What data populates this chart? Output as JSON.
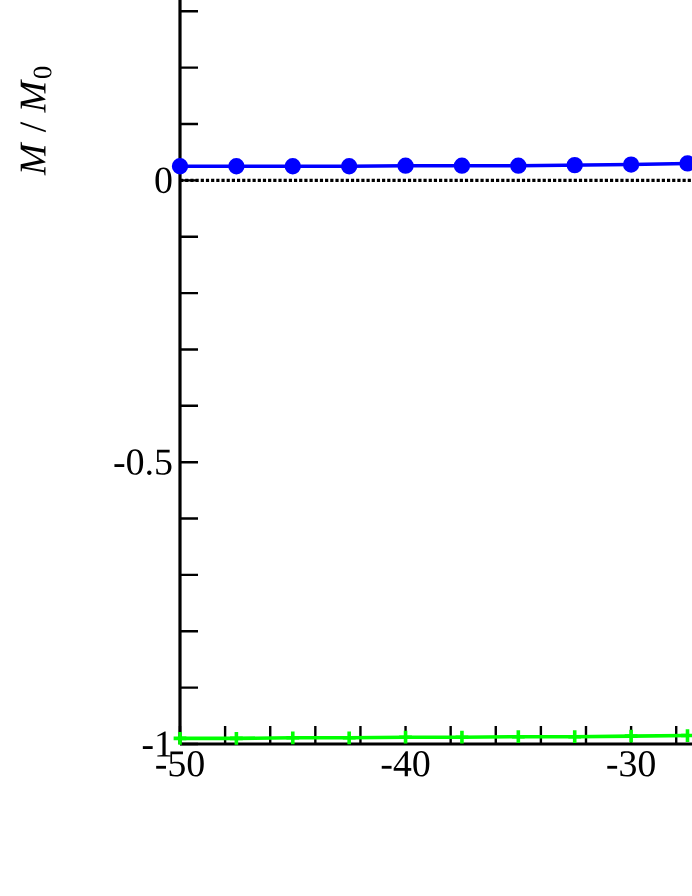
{
  "chart_data": {
    "type": "line",
    "ylabel": "*M* / *M*$_{0}$",
    "x": [
      -50,
      -47.5,
      -45,
      -42.5,
      -40,
      -37.5,
      -35,
      -32.5,
      -30,
      -27.5
    ],
    "series": [
      {
        "color": "#0000ff",
        "marker": "circle",
        "values": [
          0.025,
          0.025,
          0.025,
          0.025,
          0.026,
          0.026,
          0.026,
          0.027,
          0.028,
          0.03
        ]
      },
      {
        "color": "#00ff00",
        "marker": "cross",
        "values": [
          -0.99,
          -0.99,
          -0.989,
          -0.989,
          -0.988,
          -0.988,
          -0.987,
          -0.987,
          -0.986,
          -0.985
        ]
      }
    ],
    "xlim": [
      -50,
      -27.3
    ],
    "ylim": [
      -1,
      0.32
    ],
    "xticks": [
      -50,
      {
        "value": -48,
        "label": null
      },
      {
        "value": -46,
        "label": null
      },
      {
        "value": -44,
        "label": null
      },
      {
        "value": -42,
        "label": null
      },
      -40,
      {
        "value": -38,
        "label": null
      },
      {
        "value": -36,
        "label": null
      },
      {
        "value": -34,
        "label": null
      },
      {
        "value": -32,
        "label": null
      },
      -30,
      {
        "value": -28,
        "label": null
      }
    ],
    "yticks": [
      -1,
      {
        "value": -0.9,
        "label": null
      },
      {
        "value": -0.8,
        "label": null
      },
      {
        "value": -0.7,
        "label": null
      },
      {
        "value": -0.6,
        "label": null
      },
      -0.5,
      {
        "value": -0.4,
        "label": null
      },
      {
        "value": -0.3,
        "label": null
      },
      {
        "value": -0.2,
        "label": null
      },
      {
        "value": -0.1,
        "label": null
      },
      0,
      {
        "value": 0.1,
        "label": null
      },
      {
        "value": 0.2,
        "label": null
      },
      {
        "value": 0.3,
        "label": null
      }
    ],
    "ref_lines": [
      {
        "axis": "y",
        "value": 0,
        "color": "#000000",
        "line_style": "dotted"
      }
    ],
    "line_style": "solid"
  }
}
